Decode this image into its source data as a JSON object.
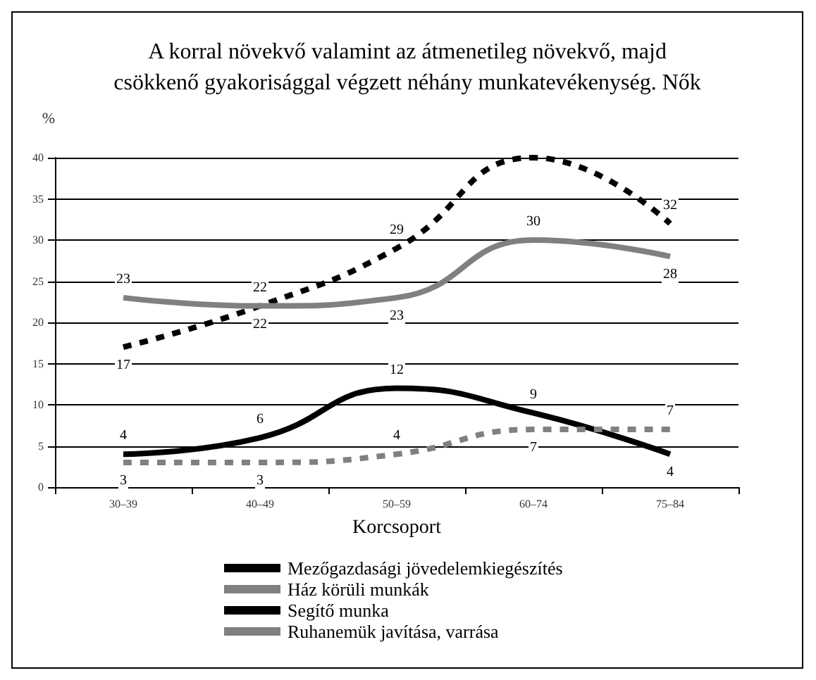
{
  "chart_data": {
    "type": "line",
    "title": "A korral növekvő valamint az átmenetileg növekvő, majd\ncsökkenő gyakorisággal végzett néhány munkatevékenység. Nők",
    "xlabel": "Korcsoport",
    "ylabel": "%",
    "categories": [
      "30–39",
      "40–49",
      "50–59",
      "60–74",
      "75–84"
    ],
    "series": [
      {
        "name": "Mezőgazdasági jövedelemkiegészítés",
        "color": "#000000",
        "line_style": "dashed",
        "values": [
          17,
          22,
          29,
          40,
          32
        ],
        "value_labels": [
          "17",
          "22",
          "29",
          null,
          "32"
        ]
      },
      {
        "name": "Ház körüli munkák",
        "color": "#808080",
        "line_style": "solid",
        "values": [
          23,
          22,
          23,
          30,
          28
        ],
        "value_labels": [
          "23",
          "22",
          "23",
          "30",
          "28"
        ]
      },
      {
        "name": "Segítő munka",
        "color": "#000000",
        "line_style": "solid",
        "values": [
          4,
          6,
          12,
          9,
          4
        ],
        "value_labels": [
          "4",
          "6",
          "12",
          "9",
          "4"
        ]
      },
      {
        "name": "Ruhanemük javítása, varrása",
        "color": "#808080",
        "line_style": "dashed",
        "values": [
          3,
          3,
          4,
          7,
          7
        ],
        "value_labels": [
          "3",
          "3",
          "4",
          "7",
          "7"
        ]
      }
    ],
    "ylim": [
      0,
      40
    ],
    "yticks": [
      0,
      5,
      10,
      15,
      20,
      25,
      30,
      35,
      40
    ],
    "grid": "y",
    "legend": "bottom",
    "marker": "none"
  }
}
